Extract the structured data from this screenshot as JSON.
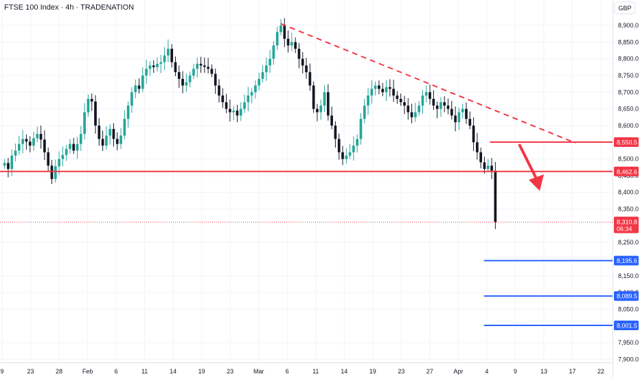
{
  "header": {
    "title": "FTSE 100 Index · 4h · TRADENATION"
  },
  "currency": "GBP",
  "colors": {
    "up": "#26a69a",
    "down": "#131722",
    "resistance": "#f23645",
    "support": "#2962ff",
    "trendline": "#f23645",
    "grid": "#f0f3fa",
    "axis_text": "#131722"
  },
  "chart_data": {
    "type": "candlestick",
    "title": "FTSE 100 Index · 4h · TRADENATION",
    "ylim": [
      7870,
      8935
    ],
    "y_ticks": [
      "8,900.0",
      "8,850.0",
      "8,800.0",
      "8,750.0",
      "8,700.0",
      "8,650.0",
      "8,600.0",
      "8,500.0",
      "8,450.0",
      "8,400.0",
      "8,350.0",
      "8,250.0",
      "8,150.0",
      "8,100.0",
      "8,050.0",
      "7,950.0",
      "7,900.0"
    ],
    "x_ticks": [
      "9",
      "23",
      "28",
      "Feb",
      "6",
      "11",
      "14",
      "19",
      "23",
      "Mar",
      "6",
      "11",
      "14",
      "19",
      "23",
      "27",
      "Apr",
      "4",
      "9",
      "13",
      "17",
      "22"
    ],
    "close_series": [
      8488,
      8470,
      8510,
      8525,
      8545,
      8560,
      8552,
      8540,
      8562,
      8575,
      8558,
      8520,
      8480,
      8440,
      8478,
      8500,
      8512,
      8530,
      8545,
      8525,
      8545,
      8575,
      8640,
      8680,
      8672,
      8600,
      8560,
      8540,
      8570,
      8590,
      8560,
      8545,
      8570,
      8620,
      8660,
      8700,
      8720,
      8710,
      8750,
      8770,
      8780,
      8775,
      8785,
      8790,
      8810,
      8830,
      8790,
      8760,
      8740,
      8720,
      8730,
      8750,
      8770,
      8785,
      8780,
      8776,
      8770,
      8755,
      8720,
      8690,
      8670,
      8650,
      8640,
      8645,
      8630,
      8650,
      8670,
      8690,
      8700,
      8720,
      8740,
      8760,
      8780,
      8800,
      8840,
      8880,
      8900,
      8860,
      8840,
      8850,
      8830,
      8800,
      8780,
      8760,
      8720,
      8650,
      8640,
      8660,
      8700,
      8630,
      8600,
      8560,
      8520,
      8500,
      8510,
      8520,
      8540,
      8560,
      8620,
      8660,
      8690,
      8710,
      8720,
      8710,
      8700,
      8715,
      8710,
      8690,
      8680,
      8670,
      8660,
      8640,
      8625,
      8640,
      8660,
      8690,
      8700,
      8680,
      8660,
      8650,
      8670,
      8660,
      8650,
      8630,
      8610,
      8640,
      8650,
      8620,
      8600,
      8550,
      8520,
      8490,
      8470,
      8480,
      8465,
      8311
    ],
    "last_price": "8,310.8",
    "countdown": "06:34",
    "levels": [
      {
        "value": 8550.5,
        "label": "8,550.5",
        "kind": "resistance",
        "x_start_frac": 0.8
      },
      {
        "value": 8462.6,
        "label": "8,462.6",
        "kind": "resistance",
        "x_start_frac": 0.0
      },
      {
        "value": 8195.6,
        "label": "8,195.6",
        "kind": "support",
        "x_start_frac": 0.79
      },
      {
        "value": 8089.5,
        "label": "8,089.5",
        "kind": "support",
        "x_start_frac": 0.79
      },
      {
        "value": 8001.5,
        "label": "8,001.5",
        "kind": "support",
        "x_start_frac": 0.79
      }
    ],
    "trendline": {
      "from": {
        "index": 76,
        "price": 8905
      },
      "to_price": 8548
    },
    "arrow": {
      "direction": "down"
    }
  }
}
